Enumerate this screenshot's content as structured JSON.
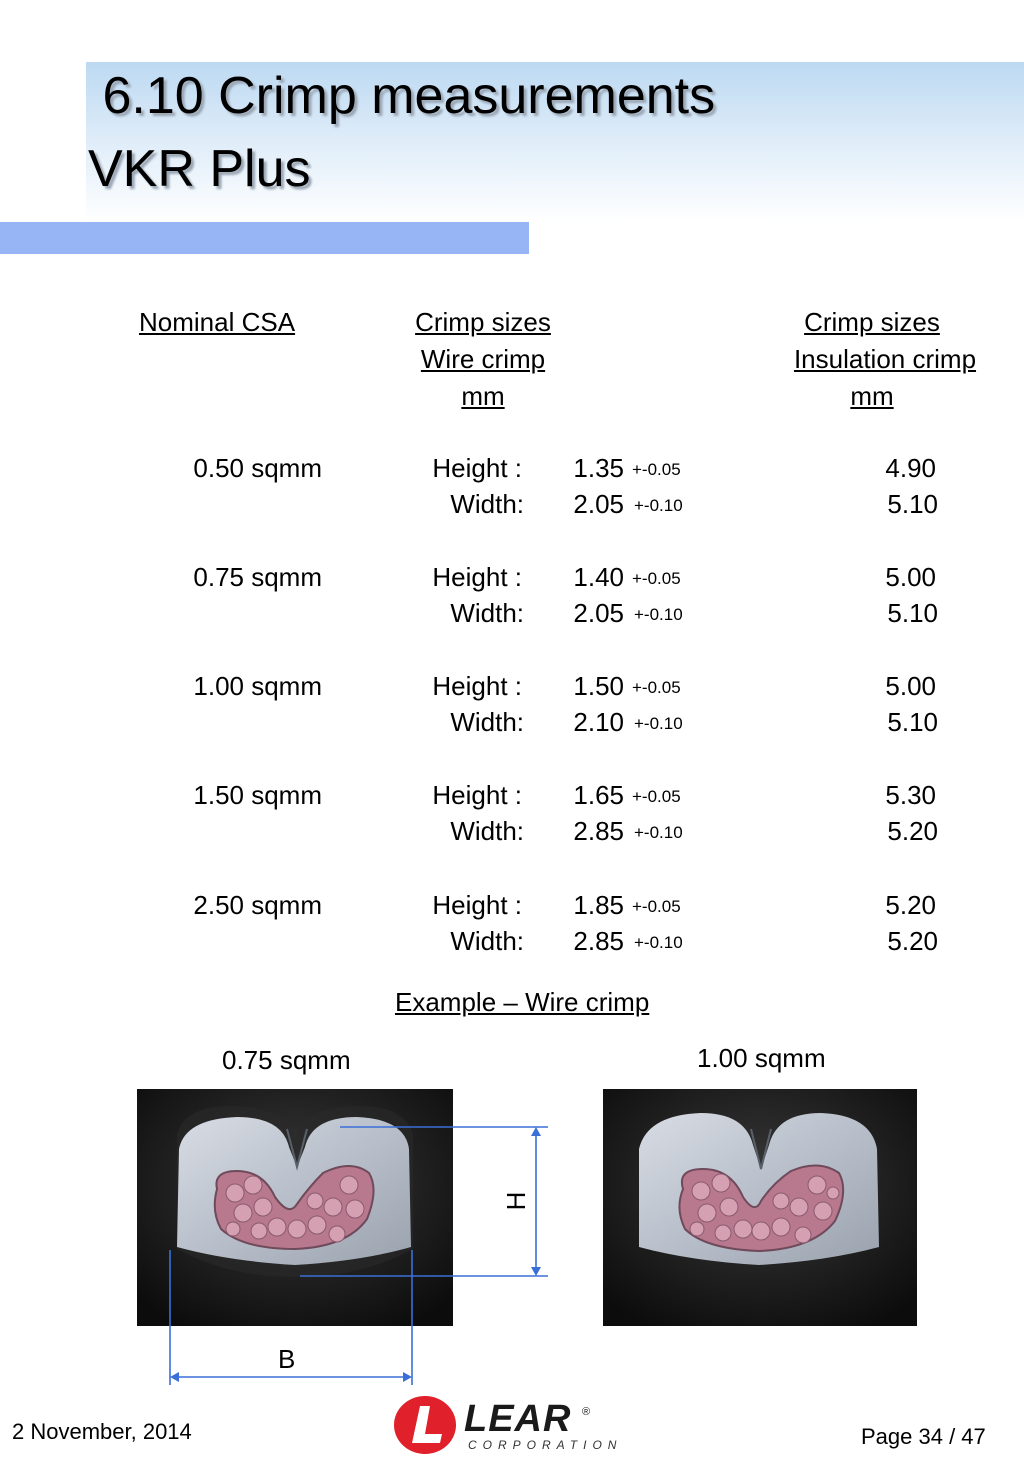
{
  "title": {
    "line1": " 6.10 Crimp measurements",
    "line2": "VKR Plus"
  },
  "colors": {
    "accent_bar": "#97b4f4",
    "dimension_line": "#3b6fd8",
    "logo_red": "#e0202a"
  },
  "table": {
    "headers": {
      "csa": "Nominal CSA ",
      "wire": [
        "Crimp sizes",
        "Wire crimp",
        "mm"
      ],
      "insulation": [
        "Crimp sizes",
        "Insulation crimp",
        "mm"
      ]
    },
    "rows": [
      {
        "csa": "0.50 sqmm",
        "height_label": "Height :",
        "height": "1.35",
        "height_tol": "+-0.05",
        "width_label": "Width:",
        "width": "2.05",
        "width_tol": "+-0.10",
        "ins_height": "4.90",
        "ins_width": "5.10"
      },
      {
        "csa": "0.75 sqmm",
        "height_label": "Height :",
        "height": "1.40",
        "height_tol": "+-0.05",
        "width_label": "Width:",
        "width": "2.05",
        "width_tol": "+-0.10",
        "ins_height": "5.00",
        "ins_width": "5.10"
      },
      {
        "csa": "1.00 sqmm",
        "height_label": "Height :",
        "height": "1.50",
        "height_tol": "+-0.05",
        "width_label": "Width:",
        "width": "2.10",
        "width_tol": "+-0.10",
        "ins_height": "5.00",
        "ins_width": "5.10"
      },
      {
        "csa": "1.50 sqmm",
        "height_label": "Height :",
        "height": "1.65",
        "height_tol": "+-0.05",
        "width_label": "Width:",
        "width": "2.85",
        "width_tol": "+-0.10",
        "ins_height": "5.30",
        "ins_width": "5.20"
      },
      {
        "csa": "2.50 sqmm",
        "height_label": "Height :",
        "height": "1.85",
        "height_tol": "+-0.05",
        "width_label": "Width:",
        "width": "2.85",
        "width_tol": "+-0.10",
        "ins_height": "5.20",
        "ins_width": "5.20"
      }
    ]
  },
  "example": {
    "heading": "Example – Wire crimp",
    "left_label": "0.75 sqmm",
    "right_label": "1.00 sqmm",
    "height_marker": "H",
    "width_marker": "B"
  },
  "footer": {
    "date": "2 November, 2014",
    "logo_word": "LEAR",
    "logo_sub": "CORPORATION",
    "logo_mark": "®",
    "page": "Page 34 / 47"
  }
}
